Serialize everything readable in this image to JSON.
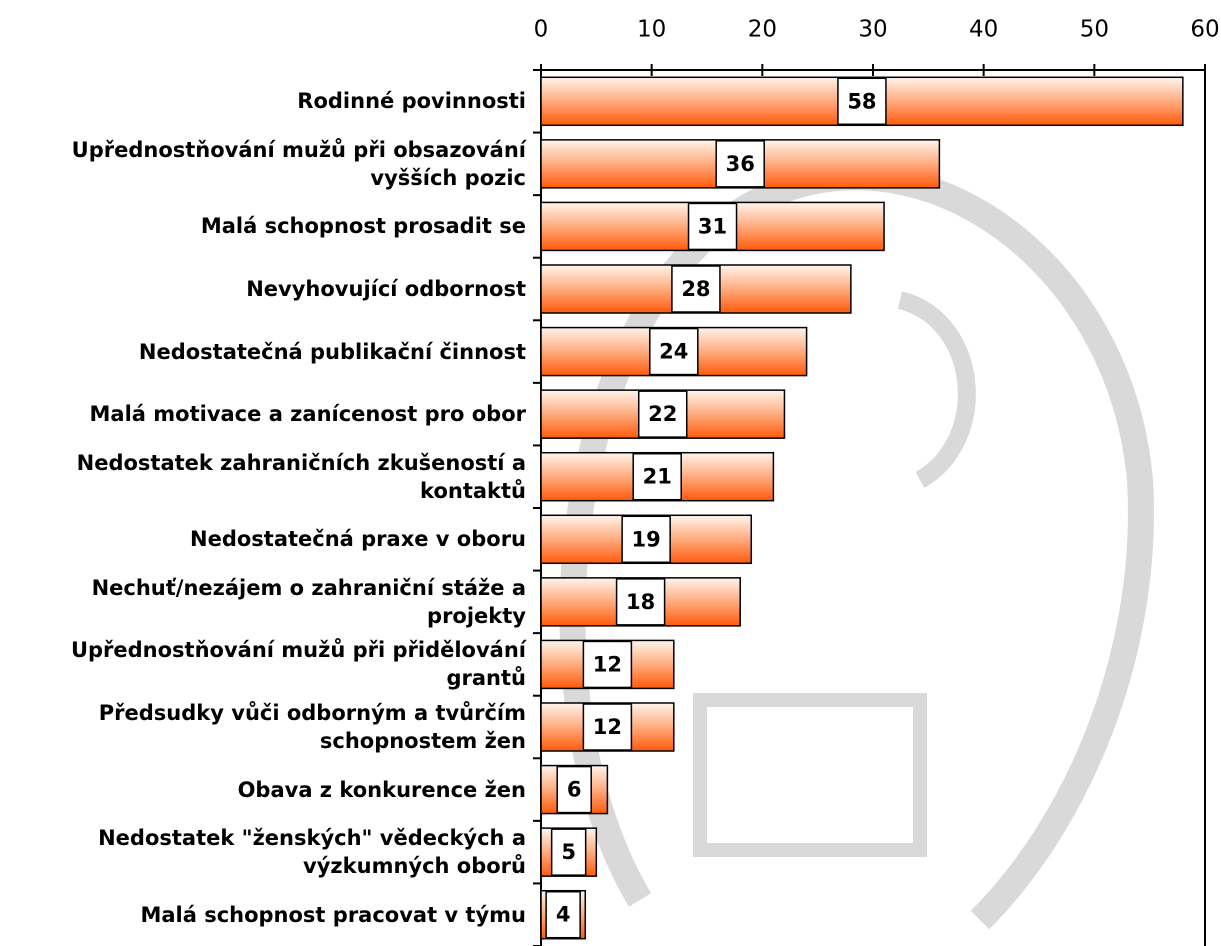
{
  "chart_data": {
    "type": "bar",
    "orientation": "horizontal",
    "categories": [
      "Rodinné povinnosti",
      "Upřednostňování mužů při obsazování vyšších pozic",
      "Malá schopnost prosadit se",
      "Nevyhovující odbornost",
      "Nedostatečná publikační činnost",
      "Malá motivace a zanícenost pro obor",
      "Nedostatek zahraničních zkušeností a kontaktů",
      "Nedostatečná praxe v oboru",
      "Nechuť/nezájem o zahraniční stáže a projekty",
      "Upřednostňování mužů při přidělování grantů",
      "Předsudky vůči odborným a tvůrčím schopnostem žen",
      "Obava z konkurence žen",
      "Nedostatek \"ženských\" vědeckých a výzkumných oborů",
      "Malá schopnost pracovat v týmu"
    ],
    "values": [
      58,
      36,
      31,
      28,
      24,
      22,
      21,
      19,
      18,
      12,
      12,
      6,
      5,
      4
    ],
    "color": "#ff6a1a",
    "xlim": [
      0,
      60
    ],
    "xticks": [
      0,
      10,
      20,
      30,
      40,
      50,
      60
    ],
    "grid": false
  }
}
